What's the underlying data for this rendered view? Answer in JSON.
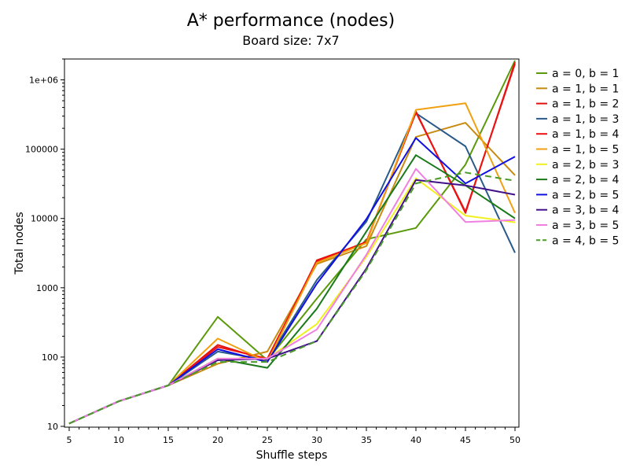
{
  "chart_data": {
    "type": "line",
    "title": "A* performance (nodes)",
    "subtitle": "Board size: 7x7",
    "xlabel": "Shuffle steps",
    "ylabel": "Total nodes",
    "y_scale": "log",
    "xlim": [
      5,
      50
    ],
    "ylim": [
      10,
      2000000
    ],
    "legend_position": "right",
    "grid": false,
    "x": [
      5,
      10,
      15,
      20,
      25,
      30,
      35,
      40,
      45,
      50
    ],
    "x_ticks": [
      "5",
      "10",
      "15",
      "20",
      "25",
      "30",
      "35",
      "40",
      "45",
      "50"
    ],
    "y_ticks": [
      {
        "value": 10,
        "label": "10"
      },
      {
        "value": 100,
        "label": "100"
      },
      {
        "value": 1000,
        "label": "1000"
      },
      {
        "value": 10000,
        "label": "10000"
      },
      {
        "value": 100000,
        "label": "100000"
      },
      {
        "value": 1000000,
        "label": "1e+06"
      }
    ],
    "series": [
      {
        "name": "a = 0, b = 1",
        "color": "#5a9a0a",
        "dash": false,
        "values": [
          11,
          23,
          39,
          380,
          90,
          700,
          5000,
          7300,
          60000,
          1900000
        ]
      },
      {
        "name": "a = 1, b = 1",
        "color": "#c88a10",
        "dash": false,
        "values": [
          11,
          23,
          39,
          80,
          120,
          2200,
          4000,
          150000,
          240000,
          42000
        ]
      },
      {
        "name": "a = 1, b = 2",
        "color": "#e01010",
        "dash": false,
        "values": [
          11,
          23,
          39,
          150,
          90,
          2500,
          4500,
          350000,
          12000,
          1800000
        ]
      },
      {
        "name": "a = 1, b = 3",
        "color": "#2a5a8a",
        "dash": false,
        "values": [
          11,
          23,
          39,
          120,
          90,
          1300,
          9000,
          330000,
          110000,
          3200
        ]
      },
      {
        "name": "a = 1, b = 4",
        "color": "#ee1111",
        "dash": false,
        "values": [
          11,
          23,
          39,
          140,
          95,
          2400,
          4600,
          340000,
          12500,
          1700000
        ]
      },
      {
        "name": "a = 1, b = 5",
        "color": "#f0a010",
        "dash": false,
        "values": [
          11,
          23,
          39,
          185,
          85,
          2300,
          4400,
          370000,
          460000,
          12000
        ]
      },
      {
        "name": "a = 2, b = 3",
        "color": "#f0f020",
        "dash": false,
        "values": [
          11,
          23,
          39,
          95,
          95,
          300,
          2800,
          38000,
          11000,
          8800
        ]
      },
      {
        "name": "a = 2, b = 4",
        "color": "#1a7a1a",
        "dash": false,
        "values": [
          11,
          23,
          39,
          95,
          70,
          500,
          6500,
          82000,
          30000,
          10000
        ]
      },
      {
        "name": "a = 2, b = 5",
        "color": "#1010e0",
        "dash": false,
        "values": [
          11,
          23,
          39,
          130,
          85,
          1150,
          9800,
          145000,
          32000,
          78000
        ]
      },
      {
        "name": "a = 3, b = 4",
        "color": "#40108a",
        "dash": false,
        "values": [
          11,
          23,
          39,
          90,
          95,
          170,
          1900,
          36000,
          30000,
          22000
        ]
      },
      {
        "name": "a = 3, b = 5",
        "color": "#f080e0",
        "dash": false,
        "values": [
          11,
          23,
          39,
          95,
          95,
          250,
          3000,
          52000,
          8900,
          9500
        ]
      },
      {
        "name": "a = 4, b = 5",
        "color": "#4a9a2a",
        "dash": true,
        "values": [
          11,
          23,
          39,
          85,
          85,
          170,
          1800,
          32000,
          46000,
          35000
        ]
      }
    ]
  }
}
